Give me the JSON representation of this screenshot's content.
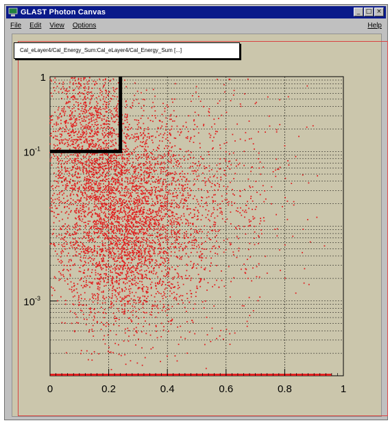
{
  "window": {
    "title": "GLAST Photon Canvas",
    "buttons": [
      "_",
      "□",
      "×"
    ]
  },
  "menu": {
    "items": [
      "File",
      "Edit",
      "View",
      "Options"
    ],
    "help": "Help"
  },
  "histogram_title": "Cal_eLayer4/Cal_Energy_Sum:Cal_eLayer4/Cal_Energy_Sum [...]",
  "icons": [
    "app-icon"
  ],
  "colors": {
    "points": "#e02020",
    "frame": "#d84040",
    "canvas_bg": "#cbc6ac",
    "cut_line": "#000000"
  },
  "chart_data": {
    "type": "scatter",
    "title": "Cal_eLayer4/Cal_Energy_Sum:Cal_eLayer4/Cal_Energy_Sum [...]",
    "xlabel": "",
    "ylabel": "",
    "xlim": [
      0,
      1
    ],
    "ylim": [
      0.0001,
      1
    ],
    "y_scale": "log",
    "grid": true,
    "x_tick_labels": [
      "0",
      "0.2",
      "0.4",
      "0.6",
      "0.8",
      "1"
    ],
    "y_tick_labels": [
      {
        "value": 1,
        "base": "1",
        "exp": ""
      },
      {
        "value": 0.1,
        "base": "10",
        "exp": "-1"
      },
      {
        "value": 0.001,
        "base": "10",
        "exp": "-3"
      }
    ],
    "cut_line": {
      "x": 0.24,
      "y": 0.1
    },
    "cluster_centers": [
      {
        "x": 0.25,
        "y": 0.01,
        "sd_x": 0.12,
        "sd_logy": 0.7,
        "n": 3400
      },
      {
        "x": 0.12,
        "y": 0.15,
        "sd_x": 0.08,
        "sd_logy": 0.6,
        "n": 1400
      },
      {
        "x": 0.5,
        "y": 0.02,
        "sd_x": 0.16,
        "sd_logy": 0.75,
        "n": 900
      }
    ]
  }
}
